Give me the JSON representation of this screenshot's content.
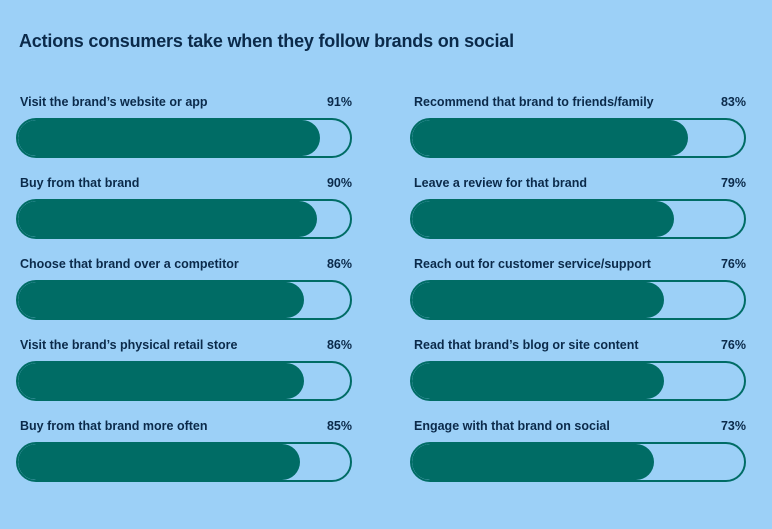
{
  "chart_data": {
    "type": "bar",
    "title": "Actions consumers take when they follow brands on social",
    "categories": [
      "Visit the brand’s website or app",
      "Buy from that brand",
      "Choose that brand over a competitor",
      "Visit the brand’s physical retail store",
      "Buy from that brand more often",
      "Recommend that brand to friends/family",
      "Leave a review for that brand",
      "Reach out for customer service/support",
      "Read that brand’s blog or site content",
      "Engage with that brand on social"
    ],
    "values": [
      91,
      90,
      86,
      86,
      85,
      83,
      79,
      76,
      76,
      73
    ],
    "value_labels": [
      "91%",
      "90%",
      "86%",
      "86%",
      "85%",
      "83%",
      "79%",
      "76%",
      "76%",
      "73%"
    ],
    "ylim": [
      0,
      100
    ],
    "bar_color": "#006c65",
    "background_color": "#9cd0f7"
  }
}
